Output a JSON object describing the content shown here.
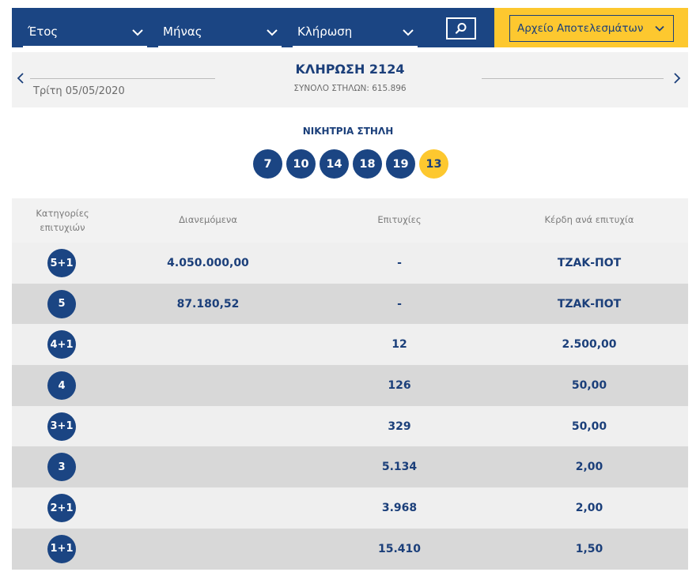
{
  "filters": {
    "year": "Έτος",
    "month": "Μήνας",
    "draw": "Κλήρωση"
  },
  "archive_button": "Αρχείο Αποτελεσμάτων",
  "draw": {
    "date": "Τρίτη 05/05/2020",
    "title": "ΚΛΗΡΩΣΗ 2124",
    "total_columns": "ΣΥΝΟΛΟ ΣΤΗΛΩΝ: 615.896"
  },
  "winning": {
    "title": "ΝΙΚΗΤΡΙΑ ΣΤΗΛΗ",
    "numbers": [
      "7",
      "10",
      "14",
      "18",
      "19"
    ],
    "joker": "13"
  },
  "table": {
    "headers": {
      "category": "Κατηγορίες επιτυχιών",
      "distributed": "Διανεμόμενα",
      "winners": "Επιτυχίες",
      "prize": "Κέρδη ανά επιτυχία"
    },
    "rows": [
      {
        "category": "5+1",
        "distributed": "4.050.000,00",
        "winners": "-",
        "prize": "ΤΖΑΚ-ΠΟΤ"
      },
      {
        "category": "5",
        "distributed": "87.180,52",
        "winners": "-",
        "prize": "ΤΖΑΚ-ΠΟΤ"
      },
      {
        "category": "4+1",
        "distributed": "",
        "winners": "12",
        "prize": "2.500,00"
      },
      {
        "category": "4",
        "distributed": "",
        "winners": "126",
        "prize": "50,00"
      },
      {
        "category": "3+1",
        "distributed": "",
        "winners": "329",
        "prize": "50,00"
      },
      {
        "category": "3",
        "distributed": "",
        "winners": "5.134",
        "prize": "2,00"
      },
      {
        "category": "2+1",
        "distributed": "",
        "winners": "3.968",
        "prize": "2,00"
      },
      {
        "category": "1+1",
        "distributed": "",
        "winners": "15.410",
        "prize": "1,50"
      }
    ]
  },
  "colors": {
    "primary": "#1b4583",
    "accent": "#fdc82f",
    "row_light": "#efefef",
    "row_dark": "#d8d8d8"
  },
  "icons": [
    "chevron-down-icon",
    "search-icon",
    "chevron-left-icon",
    "chevron-right-icon"
  ]
}
